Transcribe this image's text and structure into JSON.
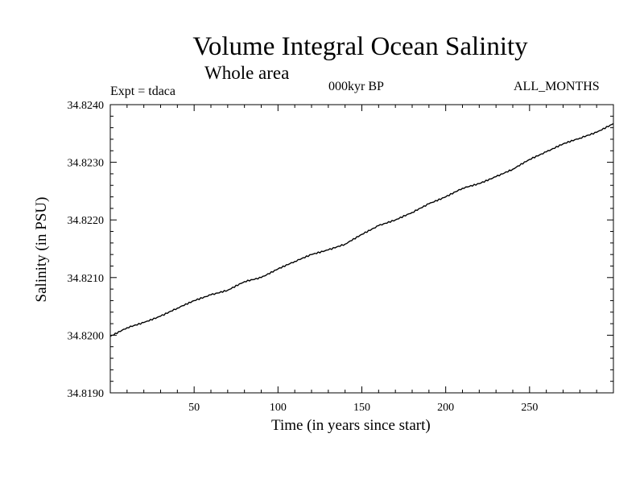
{
  "header": {
    "title": "Volume Integral Ocean Salinity",
    "subtitle": "Whole area",
    "experiment": "Expt = tdaca",
    "epoch": "000kyr BP",
    "months": "ALL_MONTHS"
  },
  "chart_data": {
    "type": "line",
    "title": "Volume Integral Ocean Salinity",
    "subtitle": "Whole area",
    "xlabel": "Time (in years since start)",
    "ylabel": "Salinity (in PSU)",
    "xlim": [
      0,
      300
    ],
    "ylim": [
      34.819,
      34.824
    ],
    "xticks": [
      50,
      100,
      150,
      200,
      250
    ],
    "xtick_labels": [
      "50",
      "100",
      "150",
      "200",
      "250"
    ],
    "yticks": [
      34.819,
      34.82,
      34.821,
      34.822,
      34.823,
      34.824
    ],
    "ytick_labels": [
      "34.8190",
      "34.8200",
      "34.8210",
      "34.8220",
      "34.8230",
      "34.8240"
    ],
    "grid": false,
    "series": [
      {
        "name": "Salinity",
        "x": [
          0,
          10,
          20,
          30,
          40,
          50,
          60,
          70,
          80,
          90,
          100,
          110,
          120,
          130,
          140,
          150,
          160,
          170,
          180,
          190,
          200,
          210,
          220,
          230,
          240,
          250,
          260,
          270,
          280,
          290,
          300
        ],
        "values": [
          34.81998,
          34.82013,
          34.82022,
          34.82033,
          34.82047,
          34.8206,
          34.8207,
          34.82078,
          34.82093,
          34.821,
          34.82115,
          34.82128,
          34.8214,
          34.82148,
          34.82158,
          34.82175,
          34.8219,
          34.822,
          34.82213,
          34.82228,
          34.8224,
          34.82255,
          34.82263,
          34.82275,
          34.82288,
          34.82305,
          34.82318,
          34.82332,
          34.82342,
          34.82352,
          34.82367
        ]
      }
    ]
  }
}
